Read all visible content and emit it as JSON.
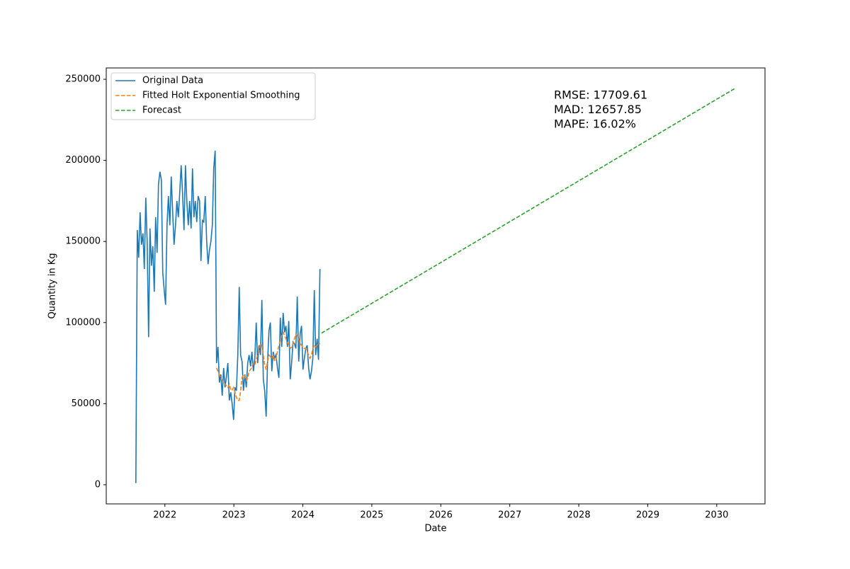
{
  "chart_data": {
    "type": "line",
    "xlabel": "Date",
    "ylabel": "Quantity in Kg",
    "xlim": [
      2021.15,
      2030.7
    ],
    "xticks": [
      2022,
      2023,
      2024,
      2025,
      2026,
      2027,
      2028,
      2029,
      2030
    ],
    "ylim": [
      -11800,
      257000
    ],
    "yticks": [
      0,
      50000,
      100000,
      150000,
      200000,
      250000
    ],
    "grid": false,
    "legend": "upper left",
    "annotation": [
      "RMSE: 17709.61",
      "MAD: 12657.85",
      "MAPE: 16.02%"
    ],
    "x": [
      2021.579,
      2021.6,
      2021.62,
      2021.641,
      2021.661,
      2021.682,
      2021.702,
      2021.723,
      2021.743,
      2021.764,
      2021.784,
      2021.805,
      2021.825,
      2021.846,
      2021.866,
      2021.887,
      2021.907,
      2021.928,
      2021.949,
      2021.969,
      2021.99,
      2022.01,
      2022.031,
      2022.051,
      2022.072,
      2022.092,
      2022.113,
      2022.133,
      2022.154,
      2022.174,
      2022.195,
      2022.215,
      2022.236,
      2022.256,
      2022.277,
      2022.298,
      2022.318,
      2022.339,
      2022.359,
      2022.38,
      2022.4,
      2022.421,
      2022.441,
      2022.462,
      2022.482,
      2022.503,
      2022.523,
      2022.544,
      2022.564,
      2022.585,
      2022.606,
      2022.626,
      2022.647,
      2022.667,
      2022.688,
      2022.708,
      2022.729,
      2022.749,
      2022.77,
      2022.79,
      2022.811,
      2022.831,
      2022.852,
      2022.872,
      2022.893,
      2022.913,
      2022.934,
      2022.955,
      2022.975,
      2022.996,
      2023.016,
      2023.037,
      2023.057,
      2023.078,
      2023.098,
      2023.119,
      2023.139,
      2023.16,
      2023.18,
      2023.201,
      2023.221,
      2023.242,
      2023.262,
      2023.283,
      2023.304,
      2023.324,
      2023.345,
      2023.365,
      2023.386,
      2023.406,
      2023.427,
      2023.447,
      2023.468,
      2023.488,
      2023.509,
      2023.529,
      2023.55,
      2023.57,
      2023.591,
      2023.611,
      2023.632,
      2023.653,
      2023.673,
      2023.694,
      2023.714,
      2023.735,
      2023.755,
      2023.776,
      2023.796,
      2023.817,
      2023.837,
      2023.858,
      2023.878,
      2023.899,
      2023.919,
      2023.94,
      2023.961,
      2023.981,
      2024.002,
      2024.022,
      2024.043,
      2024.063,
      2024.084,
      2024.104,
      2024.125,
      2024.145,
      2024.166,
      2024.186,
      2024.207,
      2024.227,
      2024.248
    ],
    "series": [
      {
        "name": "Original Data",
        "color": "#1f77b4",
        "dash": false,
        "values": [
          1000,
          157000,
          140000,
          168000,
          148000,
          155000,
          133000,
          177000,
          150000,
          91000,
          158000,
          135000,
          147000,
          119000,
          165000,
          143000,
          185000,
          193000,
          188000,
          131000,
          120000,
          111000,
          160000,
          178000,
          160000,
          190000,
          168000,
          148000,
          160000,
          175000,
          165000,
          180000,
          197000,
          180000,
          157000,
          197000,
          175000,
          160000,
          175000,
          158000,
          195000,
          165000,
          175000,
          162000,
          178000,
          175000,
          138000,
          163000,
          162000,
          178000,
          150000,
          136000,
          145000,
          150000,
          160000,
          195000,
          206000,
          75000,
          85000,
          63000,
          68000,
          55000,
          72000,
          60000,
          67000,
          75000,
          52000,
          57000,
          50000,
          40000,
          60000,
          58000,
          80000,
          122000,
          80000,
          76000,
          58000,
          68000,
          60000,
          75000,
          80000,
          73000,
          82000,
          70000,
          78000,
          100000,
          75000,
          86000,
          80000,
          114000,
          65000,
          58000,
          42000,
          75000,
          95000,
          100000,
          70000,
          82000,
          78000,
          80000,
          72000,
          66000,
          103000,
          85000,
          106000,
          94000,
          98000,
          85000,
          101000,
          65000,
          75000,
          88000,
          87000,
          84000,
          116000,
          76000,
          93000,
          98000,
          71000,
          78000,
          84000,
          86000,
          72000,
          65000,
          70000,
          78000,
          120000,
          80000,
          90000,
          77000,
          133000
        ]
      },
      {
        "name": "Fitted Holt Exponential Smoothing",
        "color": "#ff7f0e",
        "dash": true,
        "values": [
          null,
          null,
          null,
          null,
          null,
          null,
          null,
          null,
          null,
          null,
          null,
          null,
          null,
          null,
          null,
          null,
          null,
          null,
          null,
          null,
          null,
          null,
          null,
          null,
          null,
          null,
          null,
          null,
          null,
          null,
          null,
          null,
          null,
          null,
          null,
          null,
          null,
          null,
          null,
          null,
          null,
          null,
          null,
          null,
          null,
          null,
          null,
          null,
          null,
          null,
          null,
          null,
          null,
          null,
          null,
          null,
          null,
          72000,
          70000,
          68000,
          66000,
          64000,
          63000,
          62000,
          61000,
          60000,
          62000,
          59000,
          58000,
          60000,
          57000,
          54000,
          52000,
          52000,
          58000,
          66000,
          68000,
          67000,
          64000,
          66000,
          70000,
          71000,
          73000,
          75000,
          74000,
          77000,
          80000,
          82000,
          87000,
          86000,
          80000,
          74000,
          71000,
          76000,
          80000,
          79000,
          78000,
          80000,
          76000,
          77000,
          82000,
          86000,
          89000,
          92000,
          94000,
          92000,
          90000,
          88000,
          86000,
          84000,
          85000,
          87000,
          90000,
          93000,
          92000,
          90000,
          87000,
          86000,
          85000,
          84000,
          84000,
          82000,
          80000,
          78000,
          80000,
          84000,
          86000,
          85000,
          86000,
          87000,
          87000
        ]
      },
      {
        "name": "Forecast",
        "color": "#2ca02c",
        "dash": true,
        "x": [
          2024.27,
          2030.27
        ],
        "values": [
          93500,
          244500
        ]
      }
    ]
  }
}
